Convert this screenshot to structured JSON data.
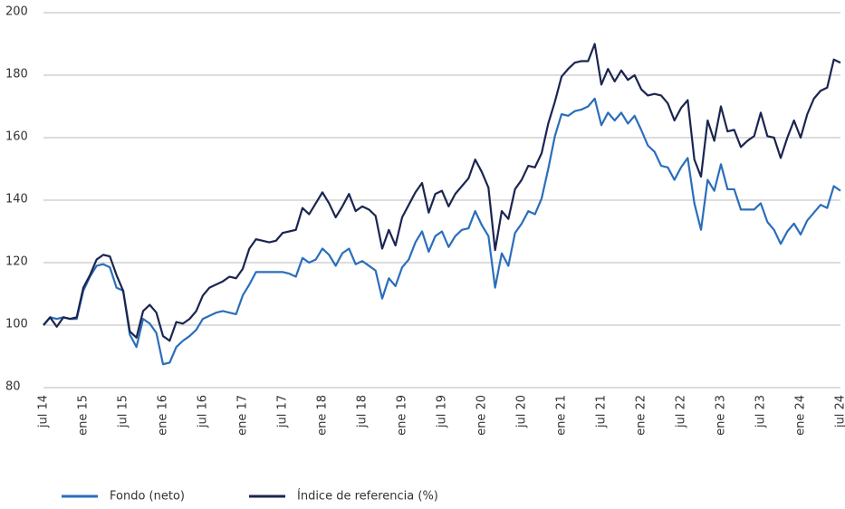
{
  "chart_data": {
    "type": "line",
    "categories": [
      "jul 14",
      null,
      null,
      null,
      null,
      null,
      "ene 15",
      null,
      null,
      null,
      null,
      null,
      "jul 15",
      null,
      null,
      null,
      null,
      null,
      "ene 16",
      null,
      null,
      null,
      null,
      null,
      "jul 16",
      null,
      null,
      null,
      null,
      null,
      "ene 17",
      null,
      null,
      null,
      null,
      null,
      "jul 17",
      null,
      null,
      null,
      null,
      null,
      "ene 18",
      null,
      null,
      null,
      null,
      null,
      "jul 18",
      null,
      null,
      null,
      null,
      null,
      "ene 19",
      null,
      null,
      null,
      null,
      null,
      "jul 19",
      null,
      null,
      null,
      null,
      null,
      "ene 20",
      null,
      null,
      null,
      null,
      null,
      "jul 20",
      null,
      null,
      null,
      null,
      null,
      "ene 21",
      null,
      null,
      null,
      null,
      null,
      "jul 21",
      null,
      null,
      null,
      null,
      null,
      "ene 22",
      null,
      null,
      null,
      null,
      null,
      "jul 22",
      null,
      null,
      null,
      null,
      null,
      "ene 23",
      null,
      null,
      null,
      null,
      null,
      "jul 23",
      null,
      null,
      null,
      null,
      null,
      "ene 24",
      null,
      null,
      null,
      null,
      null,
      "jul 24"
    ],
    "series": [
      {
        "name": "Fondo (neto)",
        "color": "#2a6ebb",
        "values": [
          100,
          102.5,
          102,
          102.5,
          102,
          102,
          111,
          115.5,
          119,
          119.5,
          118.5,
          112,
          111,
          97,
          93,
          102,
          100.5,
          97.5,
          87.5,
          88,
          93,
          95,
          96.5,
          98.5,
          102,
          103,
          104,
          104.5,
          104,
          103.5,
          109.5,
          113,
          117,
          117,
          117,
          117,
          117,
          116.5,
          115.5,
          121.5,
          120,
          121,
          124.5,
          122.5,
          119,
          123,
          124.5,
          119.5,
          120.5,
          119,
          117.5,
          108.5,
          115,
          112.5,
          118.5,
          121,
          126.5,
          130,
          123.5,
          128.5,
          130,
          125,
          128.5,
          130.5,
          131,
          136.5,
          132,
          128.5,
          112,
          123,
          119,
          129.5,
          132.5,
          136.5,
          135.5,
          140.5,
          150,
          160.5,
          167.5,
          167,
          168.5,
          169,
          170,
          172.5,
          164,
          168,
          165.5,
          168,
          164.5,
          167,
          162.5,
          157.5,
          155.5,
          151,
          150.5,
          146.5,
          150.5,
          153.5,
          139,
          130.5,
          146.5,
          143,
          151.5,
          143.5,
          143.5,
          137,
          137,
          137,
          139,
          133,
          130.5,
          126,
          130,
          132.5,
          129,
          133.5,
          136,
          138.5,
          137.5,
          144.5,
          143
        ]
      },
      {
        "name": "Índice de referencia (%)",
        "color": "#1b2550",
        "values": [
          100,
          102.5,
          99.5,
          102.5,
          102,
          102.5,
          112,
          116,
          121,
          122.5,
          122,
          116,
          111,
          98,
          96,
          104.5,
          106.5,
          104,
          96.5,
          95,
          101,
          100.5,
          102,
          104.5,
          109.5,
          112,
          113,
          114,
          115.5,
          115,
          118,
          124.5,
          127.5,
          127,
          126.5,
          127,
          129.5,
          130,
          130.5,
          137.5,
          135.5,
          139,
          142.5,
          139,
          134.5,
          138,
          142,
          136.5,
          138,
          137,
          135,
          124.5,
          130.5,
          125.5,
          134.5,
          138.5,
          142.5,
          145.5,
          136,
          142,
          143,
          138,
          142,
          144.5,
          147,
          153,
          149,
          144,
          124,
          136.5,
          134,
          143.5,
          146.5,
          151,
          150.5,
          155,
          164.5,
          171.5,
          179.5,
          182,
          184,
          184.5,
          184.5,
          190,
          177,
          182,
          178,
          181.5,
          178.5,
          180,
          175.5,
          173.5,
          174,
          173.5,
          171,
          165.5,
          169.5,
          172,
          153,
          147.5,
          165.5,
          159,
          170,
          162,
          162.5,
          157,
          159,
          160.5,
          168,
          160.5,
          160,
          153.5,
          160,
          165.5,
          160,
          167.5,
          172.5,
          175,
          176,
          185,
          184
        ]
      }
    ],
    "ylim": [
      80,
      200
    ],
    "yticks": [
      80,
      100,
      120,
      140,
      160,
      180,
      200
    ],
    "grid": true
  }
}
